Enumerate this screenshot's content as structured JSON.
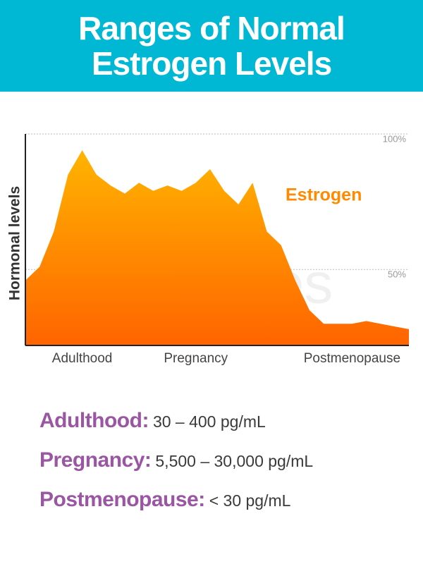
{
  "header": {
    "title": "Ranges of Normal Estrogen Levels"
  },
  "chart_data": {
    "type": "area",
    "y_label": "Hormonal levels",
    "watermark": "SheCares",
    "categories": [
      null,
      null,
      null,
      null,
      "Adulthood",
      null,
      null,
      null,
      null,
      null,
      null,
      null,
      "Pregnancy",
      null,
      null,
      null,
      null,
      null,
      null,
      null,
      null,
      null,
      null,
      "Postmenopause",
      null,
      null,
      null,
      null
    ],
    "series": [
      {
        "name": "Estrogen",
        "color": "#ff8a00",
        "values": [
          46,
          51,
          64,
          85,
          94,
          85,
          81,
          78,
          82,
          79,
          81,
          79,
          82,
          87,
          79,
          74,
          82,
          64,
          59,
          46,
          35,
          30,
          30,
          30,
          31,
          30,
          29,
          28
        ]
      }
    ],
    "ylim": [
      22,
      100
    ],
    "yticks": [
      {
        "value": 50,
        "label": "50%"
      },
      {
        "value": 100,
        "label": "100%"
      }
    ],
    "grid": true
  },
  "ranges": [
    {
      "label": "Adulthood:",
      "value": "30 – 400 pg/mL"
    },
    {
      "label": "Pregnancy:",
      "value": "5,500 – 30,000 pg/mL"
    },
    {
      "label": "Postmenopause:",
      "value": "< 30 pg/mL"
    }
  ]
}
